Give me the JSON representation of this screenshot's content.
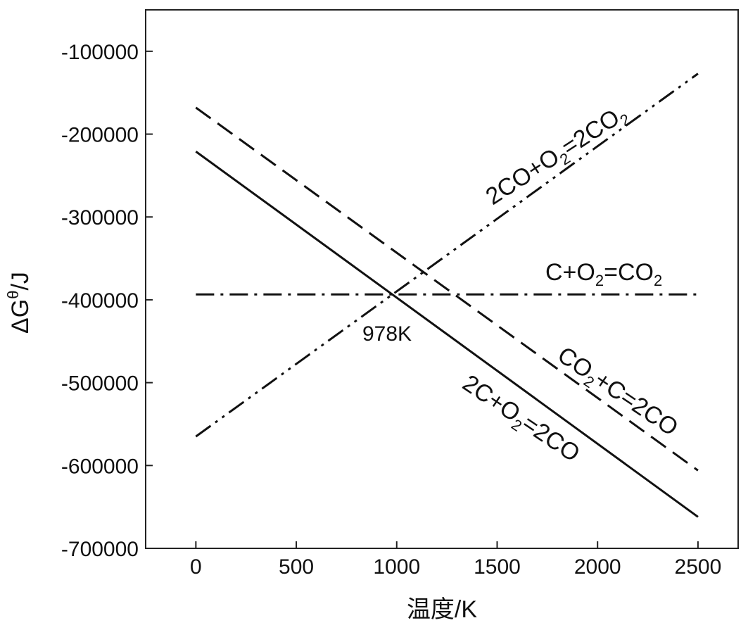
{
  "chart_data": {
    "type": "line",
    "xlabel": "温度/K",
    "ylabel": "ΔGθ/J",
    "ylabel_main": "ΔG",
    "ylabel_sup": "θ",
    "ylabel_tail": "/J",
    "xlim": [
      -250,
      2700
    ],
    "ylim": [
      -700000,
      -50000
    ],
    "x_ticks": [
      0,
      500,
      1000,
      1500,
      2000,
      2500
    ],
    "y_ticks": [
      -100000,
      -200000,
      -300000,
      -400000,
      -500000,
      -600000,
      -700000
    ],
    "x_tick_labels": [
      "0",
      "500",
      "1000",
      "1500",
      "2000",
      "2500"
    ],
    "y_tick_labels": [
      "-100000",
      "-200000",
      "-300000",
      "-400000",
      "-500000",
      "-600000",
      "-700000"
    ],
    "grid": false,
    "series": [
      {
        "key": "co_o2",
        "x": [
          0,
          2500
        ],
        "y": [
          -565000,
          -127000
        ],
        "style": "dash-dot-dot",
        "label_parts": [
          "2CO+O",
          "2",
          "=2CO",
          "2"
        ]
      },
      {
        "key": "c_o2_co2",
        "x": [
          0,
          2500
        ],
        "y": [
          -393500,
          -393500
        ],
        "style": "dash-dot",
        "label_parts": [
          "C+O",
          "2",
          "=CO",
          "2"
        ]
      },
      {
        "key": "co2_c",
        "x": [
          0,
          2500
        ],
        "y": [
          -168000,
          -606000
        ],
        "style": "dashed",
        "label_parts": [
          "CO",
          "2",
          "+C=2CO"
        ]
      },
      {
        "key": "c_o2_2co",
        "x": [
          0,
          2500
        ],
        "y": [
          -221000,
          -662000
        ],
        "style": "solid",
        "label_parts": [
          "2C+O",
          "2",
          "=2CO"
        ]
      }
    ],
    "annotations": [
      {
        "text": "978K",
        "x": 978,
        "y": -393500
      }
    ]
  }
}
